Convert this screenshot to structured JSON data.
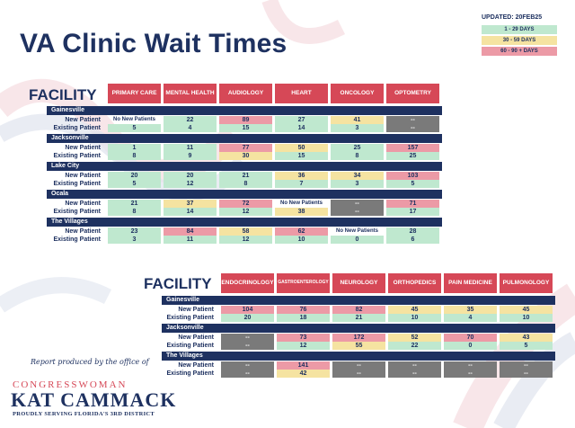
{
  "title": "VA Clinic Wait Times",
  "updated": "UPDATED: 20FEB25",
  "legend": [
    {
      "label": "1 - 29 DAYS",
      "color": "#bfe8cf"
    },
    {
      "label": "30 - 59 DAYS",
      "color": "#f5e3a1"
    },
    {
      "label": "60 - 90 + DAYS",
      "color": "#ec9aa6"
    }
  ],
  "row_labels": {
    "new": "New Patient",
    "existing": "Existing Patient"
  },
  "table1": {
    "facility_label": "FACILITY",
    "headers": [
      "PRIMARY CARE",
      "MENTAL HEALTH",
      "AUDIOLOGY",
      "HEART",
      "ONCOLOGY",
      "OPTOMETRY"
    ],
    "facilities": [
      {
        "name": "Gainesville",
        "new": [
          [
            "No New Patients",
            "w"
          ],
          [
            "22",
            "g"
          ],
          [
            "89",
            "r"
          ],
          [
            "27",
            "g"
          ],
          [
            "41",
            "y"
          ],
          [
            "--",
            "d"
          ]
        ],
        "existing": [
          [
            "5",
            "g"
          ],
          [
            "4",
            "g"
          ],
          [
            "15",
            "g"
          ],
          [
            "14",
            "g"
          ],
          [
            "3",
            "g"
          ],
          [
            "--",
            "d"
          ]
        ]
      },
      {
        "name": "Jacksonville",
        "new": [
          [
            "1",
            "g"
          ],
          [
            "11",
            "g"
          ],
          [
            "77",
            "r"
          ],
          [
            "50",
            "y"
          ],
          [
            "25",
            "g"
          ],
          [
            "157",
            "r"
          ]
        ],
        "existing": [
          [
            "8",
            "g"
          ],
          [
            "9",
            "g"
          ],
          [
            "30",
            "y"
          ],
          [
            "15",
            "g"
          ],
          [
            "8",
            "g"
          ],
          [
            "25",
            "g"
          ]
        ]
      },
      {
        "name": "Lake City",
        "new": [
          [
            "20",
            "g"
          ],
          [
            "20",
            "g"
          ],
          [
            "21",
            "g"
          ],
          [
            "36",
            "y"
          ],
          [
            "34",
            "y"
          ],
          [
            "103",
            "r"
          ]
        ],
        "existing": [
          [
            "5",
            "g"
          ],
          [
            "12",
            "g"
          ],
          [
            "8",
            "g"
          ],
          [
            "7",
            "g"
          ],
          [
            "3",
            "g"
          ],
          [
            "5",
            "g"
          ]
        ]
      },
      {
        "name": "Ocala",
        "new": [
          [
            "21",
            "g"
          ],
          [
            "37",
            "y"
          ],
          [
            "72",
            "r"
          ],
          [
            "No New Patients",
            "w"
          ],
          [
            "--",
            "d"
          ],
          [
            "71",
            "r"
          ]
        ],
        "existing": [
          [
            "8",
            "g"
          ],
          [
            "14",
            "g"
          ],
          [
            "12",
            "g"
          ],
          [
            "38",
            "y"
          ],
          [
            "--",
            "d"
          ],
          [
            "17",
            "g"
          ]
        ]
      },
      {
        "name": "The Villages",
        "new": [
          [
            "23",
            "g"
          ],
          [
            "84",
            "r"
          ],
          [
            "58",
            "y"
          ],
          [
            "62",
            "r"
          ],
          [
            "No New Patients",
            "w"
          ],
          [
            "28",
            "g"
          ]
        ],
        "existing": [
          [
            "3",
            "g"
          ],
          [
            "11",
            "g"
          ],
          [
            "12",
            "g"
          ],
          [
            "10",
            "g"
          ],
          [
            "0",
            "g"
          ],
          [
            "6",
            "g"
          ]
        ]
      }
    ]
  },
  "table2": {
    "facility_label": "FACILITY",
    "headers": [
      "ENDOCRINOLOGY",
      "GASTROENTEROLOGY",
      "NEUROLOGY",
      "ORTHOPEDICS",
      "PAIN MEDICINE",
      "PULMONOLOGY"
    ],
    "facilities": [
      {
        "name": "Gainesville",
        "new": [
          [
            "104",
            "r"
          ],
          [
            "76",
            "r"
          ],
          [
            "82",
            "r"
          ],
          [
            "45",
            "y"
          ],
          [
            "35",
            "y"
          ],
          [
            "45",
            "y"
          ]
        ],
        "existing": [
          [
            "20",
            "g"
          ],
          [
            "18",
            "g"
          ],
          [
            "21",
            "g"
          ],
          [
            "10",
            "g"
          ],
          [
            "4",
            "g"
          ],
          [
            "10",
            "g"
          ]
        ]
      },
      {
        "name": "Jacksonville",
        "new": [
          [
            "--",
            "d"
          ],
          [
            "73",
            "r"
          ],
          [
            "172",
            "r"
          ],
          [
            "52",
            "y"
          ],
          [
            "70",
            "r"
          ],
          [
            "43",
            "y"
          ]
        ],
        "existing": [
          [
            "--",
            "d"
          ],
          [
            "12",
            "g"
          ],
          [
            "55",
            "y"
          ],
          [
            "22",
            "g"
          ],
          [
            "0",
            "g"
          ],
          [
            "5",
            "g"
          ]
        ]
      },
      {
        "name": "The Villages",
        "new": [
          [
            "--",
            "d"
          ],
          [
            "141",
            "r"
          ],
          [
            "--",
            "d"
          ],
          [
            "--",
            "d"
          ],
          [
            "--",
            "d"
          ],
          [
            "--",
            "d"
          ]
        ],
        "existing": [
          [
            "--",
            "d"
          ],
          [
            "42",
            "y"
          ],
          [
            "--",
            "d"
          ],
          [
            "--",
            "d"
          ],
          [
            "--",
            "d"
          ],
          [
            "--",
            "d"
          ]
        ]
      }
    ]
  },
  "footer": {
    "signature": "Report produced by the office of",
    "congress": "CONGRESSWOMAN",
    "name": "KAT CAMMACK",
    "tagline": "PROUDLY SERVING FLORIDA'S 3RD DISTRICT"
  },
  "colors": {
    "navy": "#1e3160",
    "header_red": "#d64857",
    "green": "#bfe8cf",
    "yellow": "#f5e3a1",
    "red": "#ec9aa6",
    "dash": "#7a7a7a"
  }
}
